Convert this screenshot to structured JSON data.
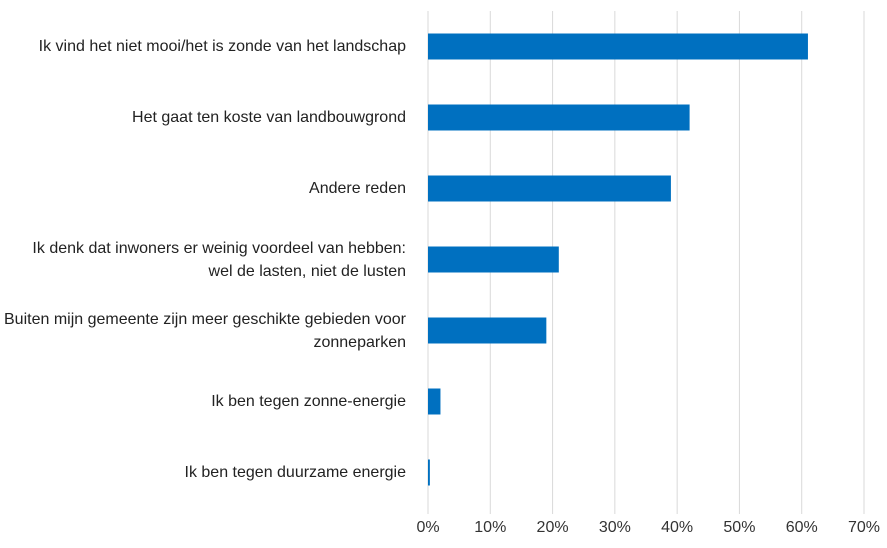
{
  "chart_data": {
    "type": "bar",
    "orientation": "horizontal",
    "categories": [
      "Ik vind het niet mooi/het is zonde van het landschap",
      "Het gaat ten koste van landbouwgrond",
      "Andere reden",
      "Ik denk dat inwoners er weinig voordeel van hebben: wel de lasten, niet de lusten",
      "Buiten mijn gemeente zijn meer geschikte gebieden voor zonneparken",
      "Ik ben tegen zonne-energie",
      "Ik ben tegen duurzame energie"
    ],
    "values": [
      61,
      42,
      39,
      21,
      19,
      2,
      0.3
    ],
    "color": "#0070c0",
    "xlim": [
      0,
      70
    ],
    "xticks": [
      {
        "value": 0,
        "label": "0%"
      },
      {
        "value": 10,
        "label": "10%"
      },
      {
        "value": 20,
        "label": "20%"
      },
      {
        "value": 30,
        "label": "30%"
      },
      {
        "value": 40,
        "label": "40%"
      },
      {
        "value": 50,
        "label": "50%"
      },
      {
        "value": 60,
        "label": "60%"
      },
      {
        "value": 70,
        "label": "70%"
      }
    ],
    "grid": true
  }
}
